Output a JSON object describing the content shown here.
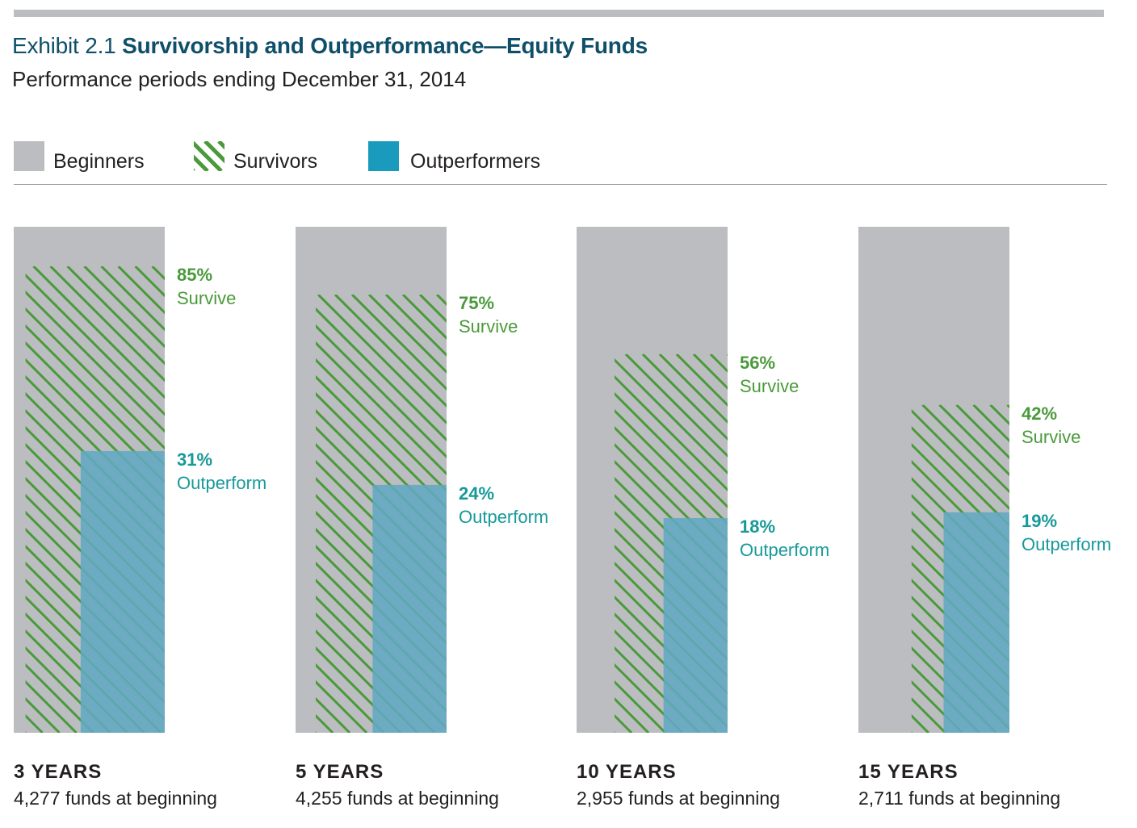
{
  "header": {
    "exhibit": "Exhibit 2.1",
    "title": "Survivorship and Outperformance—Equity Funds",
    "subtitle": "Performance periods ending December 31, 2014"
  },
  "colors": {
    "beginners": "#bcbdc1",
    "survivors": "#4a9a3a",
    "outperformers": "#1a9bbd",
    "outperformers_overlay": "#62a8c1",
    "outperform_text": "#17999a",
    "title": "#0f4f6a"
  },
  "chart_data": {
    "type": "bar",
    "title": "Survivorship and Outperformance—Equity Funds",
    "subtitle": "Performance periods ending December 31, 2014",
    "legend": [
      "Beginners",
      "Survivors",
      "Outperformers"
    ],
    "legend_position": "top-left",
    "categories": [
      "3 YEARS",
      "5 YEARS",
      "10 YEARS",
      "15 YEARS"
    ],
    "funds_at_beginning": [
      "4,277 funds at beginning",
      "4,255 funds at beginning",
      "2,955 funds at beginning",
      "2,711 funds at beginning"
    ],
    "series": [
      {
        "name": "Beginners",
        "values": [
          100,
          100,
          100,
          100
        ]
      },
      {
        "name": "Survivors",
        "values": [
          85,
          75,
          56,
          42
        ],
        "labels": [
          "85%",
          "75%",
          "56%",
          "42%"
        ],
        "caption": "Survive"
      },
      {
        "name": "Outperformers",
        "values": [
          31,
          24,
          18,
          19
        ],
        "labels": [
          "31%",
          "24%",
          "18%",
          "19%"
        ],
        "caption": "Outperform"
      }
    ],
    "unit": "%",
    "grid": false
  }
}
